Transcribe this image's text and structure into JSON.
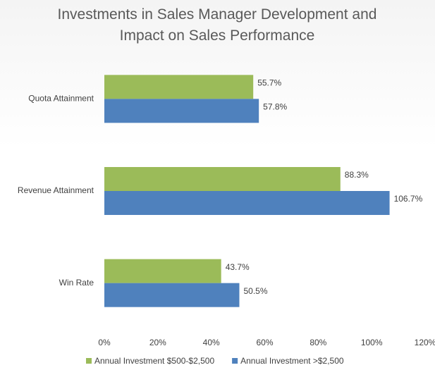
{
  "chart_data": {
    "type": "hbar",
    "title": "Investments in Sales Manager Development and Impact on Sales Performance",
    "categories": [
      "Quota Attainment",
      "Revenue Attainment",
      "Win Rate"
    ],
    "series": [
      {
        "name": "Annual Investment $500-$2,500",
        "color": "#9bbb59",
        "values": [
          55.7,
          88.3,
          43.7
        ],
        "value_labels": [
          "55.7%",
          "88.3%",
          "43.7%"
        ]
      },
      {
        "name": "Annual Investment >$2,500",
        "color": "#4f81bd",
        "values": [
          57.8,
          106.7,
          50.5
        ],
        "value_labels": [
          "57.8%",
          "106.7%",
          "50.5%"
        ]
      }
    ],
    "xlim": [
      0,
      120
    ],
    "xticks": [
      {
        "value": 0,
        "label": "0%"
      },
      {
        "value": 20,
        "label": "20%"
      },
      {
        "value": 40,
        "label": "40%"
      },
      {
        "value": 60,
        "label": "60%"
      },
      {
        "value": 80,
        "label": "80%"
      },
      {
        "value": 100,
        "label": "100%"
      },
      {
        "value": 120,
        "label": "120%"
      }
    ],
    "grid": false,
    "legend": "bottom"
  }
}
